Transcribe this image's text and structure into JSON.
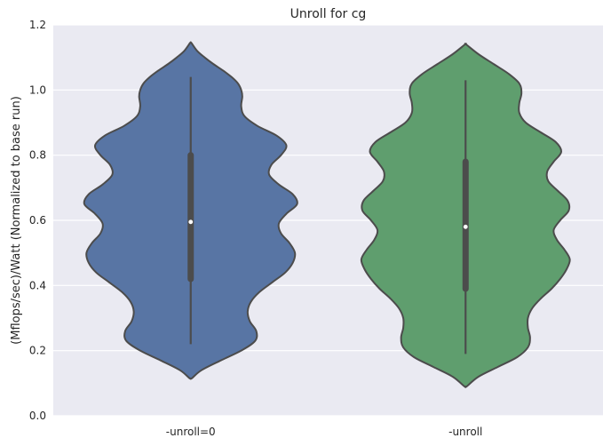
{
  "chart_data": {
    "type": "violin",
    "title": "Unroll for cg",
    "xlabel": "",
    "ylabel": "(Mflops/sec)/Watt (Normalized to base run)",
    "ylim": [
      0.0,
      1.2
    ],
    "yticks": [
      0.0,
      0.2,
      0.4,
      0.6,
      0.8,
      1.0,
      1.2
    ],
    "ytick_labels": [
      "0.0",
      "0.2",
      "0.4",
      "0.6",
      "0.8",
      "1.0",
      "1.2"
    ],
    "categories": [
      "-unroll=0",
      "-unroll"
    ],
    "grid": true,
    "background": "#eaeaf2",
    "series": [
      {
        "category": "-unroll=0",
        "color": "#5875a4",
        "median": 0.595,
        "q1": 0.42,
        "q3": 0.8,
        "whisker_low": 0.22,
        "whisker_high": 1.04,
        "density_min": 0.115,
        "density_max": 1.145,
        "density": [
          [
            0.115,
            0.01
          ],
          [
            0.14,
            0.1
          ],
          [
            0.17,
            0.28
          ],
          [
            0.2,
            0.47
          ],
          [
            0.23,
            0.6
          ],
          [
            0.26,
            0.61
          ],
          [
            0.29,
            0.55
          ],
          [
            0.32,
            0.53
          ],
          [
            0.35,
            0.56
          ],
          [
            0.38,
            0.64
          ],
          [
            0.41,
            0.76
          ],
          [
            0.44,
            0.88
          ],
          [
            0.47,
            0.95
          ],
          [
            0.5,
            0.97
          ],
          [
            0.53,
            0.92
          ],
          [
            0.56,
            0.84
          ],
          [
            0.59,
            0.82
          ],
          [
            0.62,
            0.89
          ],
          [
            0.65,
            0.99
          ],
          [
            0.68,
            0.95
          ],
          [
            0.71,
            0.82
          ],
          [
            0.74,
            0.73
          ],
          [
            0.77,
            0.75
          ],
          [
            0.8,
            0.84
          ],
          [
            0.83,
            0.89
          ],
          [
            0.86,
            0.8
          ],
          [
            0.89,
            0.62
          ],
          [
            0.92,
            0.5
          ],
          [
            0.95,
            0.47
          ],
          [
            0.98,
            0.48
          ],
          [
            1.0,
            0.47
          ],
          [
            1.02,
            0.44
          ],
          [
            1.04,
            0.38
          ],
          [
            1.06,
            0.3
          ],
          [
            1.08,
            0.21
          ],
          [
            1.1,
            0.13
          ],
          [
            1.12,
            0.06
          ],
          [
            1.145,
            0.005
          ]
        ]
      },
      {
        "category": "-unroll",
        "color": "#5f9e6e",
        "median": 0.58,
        "q1": 0.39,
        "q3": 0.78,
        "whisker_low": 0.19,
        "whisker_high": 1.03,
        "density_min": 0.09,
        "density_max": 1.14,
        "density": [
          [
            0.09,
            0.01
          ],
          [
            0.12,
            0.12
          ],
          [
            0.15,
            0.3
          ],
          [
            0.18,
            0.48
          ],
          [
            0.21,
            0.58
          ],
          [
            0.24,
            0.6
          ],
          [
            0.27,
            0.58
          ],
          [
            0.3,
            0.58
          ],
          [
            0.33,
            0.62
          ],
          [
            0.36,
            0.7
          ],
          [
            0.39,
            0.8
          ],
          [
            0.42,
            0.88
          ],
          [
            0.45,
            0.94
          ],
          [
            0.48,
            0.97
          ],
          [
            0.51,
            0.92
          ],
          [
            0.54,
            0.85
          ],
          [
            0.57,
            0.82
          ],
          [
            0.6,
            0.88
          ],
          [
            0.63,
            0.96
          ],
          [
            0.66,
            0.95
          ],
          [
            0.69,
            0.86
          ],
          [
            0.72,
            0.77
          ],
          [
            0.75,
            0.76
          ],
          [
            0.78,
            0.82
          ],
          [
            0.81,
            0.89
          ],
          [
            0.84,
            0.84
          ],
          [
            0.87,
            0.7
          ],
          [
            0.9,
            0.56
          ],
          [
            0.93,
            0.5
          ],
          [
            0.96,
            0.5
          ],
          [
            0.99,
            0.52
          ],
          [
            1.02,
            0.5
          ],
          [
            1.05,
            0.4
          ],
          [
            1.08,
            0.26
          ],
          [
            1.11,
            0.12
          ],
          [
            1.14,
            0.005
          ]
        ]
      }
    ]
  }
}
